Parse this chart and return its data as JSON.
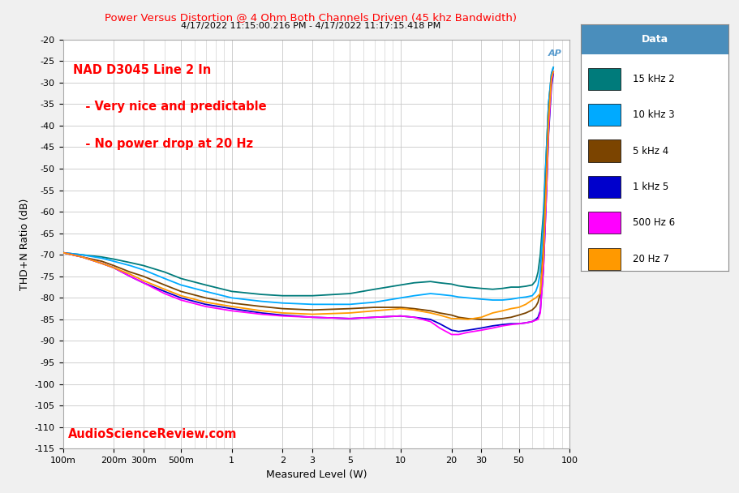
{
  "title_main": "Power Versus Distortion @ 4 Ohm Both Channels Driven (45 khz Bandwidth)",
  "title_sub": "4/17/2022 11:15:00.216 PM - 4/17/2022 11:17:15.418 PM",
  "xlabel": "Measured Level (W)",
  "ylabel": "THD+N Ratio (dB)",
  "annotation_line1": "NAD D3045 Line 2 In",
  "annotation_line2": "   - Very nice and predictable",
  "annotation_line3": "   - No power drop at 20 Hz",
  "watermark": "AudioScienceReview.com",
  "ap_logo": "AP",
  "legend_title": "Data",
  "legend_entries": [
    "15 kHz 2",
    "10 kHz 3",
    "5 kHz 4",
    "1 kHz 5",
    "500 Hz 6",
    "20 Hz 7"
  ],
  "line_colors": [
    "#007B7B",
    "#00AAFF",
    "#7B4400",
    "#0000CC",
    "#FF00FF",
    "#FF9900"
  ],
  "bg_color": "#F0F0F0",
  "plot_bg_color": "#FFFFFF",
  "grid_color": "#C8C8C8",
  "title_color": "#FF0000",
  "annotation_color": "#FF0000",
  "watermark_color": "#FF0000",
  "legend_header_bg": "#4A8EBC",
  "legend_header_fg": "#FFFFFF",
  "xlim_log": [
    0.1,
    100
  ],
  "ylim": [
    -115,
    -20
  ],
  "yticks": [
    -20,
    -25,
    -30,
    -35,
    -40,
    -45,
    -50,
    -55,
    -60,
    -65,
    -70,
    -75,
    -80,
    -85,
    -90,
    -95,
    -100,
    -105,
    -110,
    -115
  ],
  "xtick_labels": [
    "100m",
    "200m",
    "300m",
    "500m",
    "1",
    "2",
    "3",
    "5",
    "10",
    "20",
    "30",
    "50",
    "100"
  ],
  "xtick_values": [
    0.1,
    0.2,
    0.3,
    0.5,
    1.0,
    2.0,
    3.0,
    5.0,
    10.0,
    20.0,
    30.0,
    50.0,
    100.0
  ],
  "series": {
    "15kHz": {
      "x": [
        0.1,
        0.13,
        0.17,
        0.2,
        0.25,
        0.3,
        0.4,
        0.5,
        0.7,
        1.0,
        1.5,
        2.0,
        3.0,
        5.0,
        7.0,
        10.0,
        12.0,
        15.0,
        17.0,
        20.0,
        22.0,
        25.0,
        30.0,
        35.0,
        40.0,
        45.0,
        50.0,
        55.0,
        60.0,
        63.0,
        65.0,
        67.0,
        70.0,
        73.0,
        75.0,
        78.0,
        80.0
      ],
      "y": [
        -69.5,
        -70.0,
        -70.5,
        -71.0,
        -71.8,
        -72.5,
        -74.0,
        -75.5,
        -77.0,
        -78.5,
        -79.2,
        -79.5,
        -79.5,
        -79.0,
        -78.0,
        -77.0,
        -76.5,
        -76.2,
        -76.5,
        -76.8,
        -77.2,
        -77.5,
        -77.8,
        -78.0,
        -77.8,
        -77.5,
        -77.5,
        -77.3,
        -77.0,
        -76.0,
        -74.0,
        -70.0,
        -60.0,
        -45.0,
        -35.0,
        -28.0,
        -26.5
      ]
    },
    "10kHz": {
      "x": [
        0.1,
        0.13,
        0.17,
        0.2,
        0.25,
        0.3,
        0.4,
        0.5,
        0.7,
        1.0,
        1.5,
        2.0,
        3.0,
        5.0,
        7.0,
        10.0,
        12.0,
        15.0,
        17.0,
        20.0,
        22.0,
        25.0,
        30.0,
        35.0,
        40.0,
        45.0,
        50.0,
        55.0,
        60.0,
        63.0,
        65.0,
        67.0,
        70.0,
        73.0,
        75.0,
        78.0,
        80.0
      ],
      "y": [
        -69.5,
        -70.0,
        -70.8,
        -71.5,
        -72.5,
        -73.5,
        -75.5,
        -77.0,
        -78.5,
        -80.0,
        -80.8,
        -81.2,
        -81.5,
        -81.5,
        -81.0,
        -80.0,
        -79.5,
        -79.0,
        -79.2,
        -79.5,
        -79.8,
        -80.0,
        -80.3,
        -80.5,
        -80.5,
        -80.3,
        -80.0,
        -79.8,
        -79.5,
        -78.5,
        -77.0,
        -74.0,
        -62.0,
        -45.0,
        -35.0,
        -28.0,
        -26.5
      ]
    },
    "5kHz": {
      "x": [
        0.1,
        0.13,
        0.17,
        0.2,
        0.25,
        0.3,
        0.4,
        0.5,
        0.7,
        1.0,
        1.5,
        2.0,
        3.0,
        5.0,
        7.0,
        10.0,
        12.0,
        15.0,
        17.0,
        20.0,
        22.0,
        25.0,
        30.0,
        35.0,
        40.0,
        45.0,
        50.0,
        55.0,
        60.0,
        63.0,
        65.0,
        67.0,
        70.0,
        73.0,
        75.0,
        78.0,
        80.0
      ],
      "y": [
        -69.5,
        -70.5,
        -71.5,
        -72.5,
        -74.0,
        -75.0,
        -77.0,
        -78.5,
        -80.0,
        -81.2,
        -82.0,
        -82.5,
        -82.8,
        -82.5,
        -82.2,
        -82.2,
        -82.5,
        -83.0,
        -83.5,
        -84.0,
        -84.5,
        -84.8,
        -85.0,
        -85.0,
        -84.8,
        -84.5,
        -84.0,
        -83.5,
        -82.8,
        -82.0,
        -81.0,
        -79.0,
        -68.0,
        -50.0,
        -38.0,
        -29.0,
        -27.5
      ]
    },
    "1kHz": {
      "x": [
        0.1,
        0.13,
        0.17,
        0.2,
        0.25,
        0.3,
        0.4,
        0.5,
        0.7,
        1.0,
        1.5,
        2.0,
        3.0,
        5.0,
        7.0,
        10.0,
        12.0,
        15.0,
        17.0,
        20.0,
        22.0,
        25.0,
        30.0,
        35.0,
        40.0,
        45.0,
        50.0,
        55.0,
        60.0,
        63.0,
        65.0,
        67.0,
        70.0,
        73.0,
        75.0,
        78.0,
        80.0
      ],
      "y": [
        -69.5,
        -70.5,
        -72.0,
        -73.0,
        -75.0,
        -76.5,
        -78.5,
        -80.0,
        -81.5,
        -82.5,
        -83.5,
        -84.0,
        -84.5,
        -84.8,
        -84.5,
        -84.2,
        -84.5,
        -85.0,
        -86.0,
        -87.5,
        -87.8,
        -87.5,
        -87.0,
        -86.5,
        -86.2,
        -86.0,
        -86.0,
        -85.8,
        -85.5,
        -85.0,
        -84.5,
        -83.0,
        -73.0,
        -55.0,
        -42.0,
        -31.0,
        -28.0
      ]
    },
    "500Hz": {
      "x": [
        0.1,
        0.13,
        0.17,
        0.2,
        0.25,
        0.3,
        0.4,
        0.5,
        0.7,
        1.0,
        1.5,
        2.0,
        3.0,
        5.0,
        7.0,
        10.0,
        12.0,
        15.0,
        17.0,
        20.0,
        22.0,
        25.0,
        30.0,
        35.0,
        40.0,
        45.0,
        50.0,
        55.0,
        60.0,
        63.0,
        65.0,
        67.0,
        70.0,
        73.0,
        75.0,
        78.0,
        80.0
      ],
      "y": [
        -69.5,
        -70.5,
        -72.0,
        -73.0,
        -75.0,
        -76.5,
        -79.0,
        -80.5,
        -82.0,
        -83.0,
        -83.8,
        -84.2,
        -84.5,
        -84.8,
        -84.5,
        -84.2,
        -84.5,
        -85.5,
        -87.0,
        -88.5,
        -88.5,
        -88.0,
        -87.5,
        -87.0,
        -86.5,
        -86.2,
        -86.0,
        -85.8,
        -85.5,
        -85.2,
        -85.0,
        -83.5,
        -73.0,
        -55.0,
        -41.0,
        -30.0,
        -27.5
      ]
    },
    "20Hz": {
      "x": [
        0.1,
        0.13,
        0.17,
        0.2,
        0.25,
        0.3,
        0.4,
        0.5,
        0.7,
        1.0,
        1.5,
        2.0,
        3.0,
        5.0,
        7.0,
        10.0,
        12.0,
        15.0,
        17.0,
        20.0,
        22.0,
        25.0,
        30.0,
        35.0,
        40.0,
        45.0,
        50.0,
        55.0,
        60.0,
        63.0,
        65.0,
        67.0,
        70.0,
        73.0,
        75.0,
        78.0,
        80.0
      ],
      "y": [
        -69.5,
        -70.5,
        -72.0,
        -73.0,
        -74.5,
        -76.0,
        -78.0,
        -79.5,
        -81.0,
        -82.0,
        -83.0,
        -83.5,
        -83.8,
        -83.5,
        -83.0,
        -82.5,
        -82.8,
        -83.5,
        -84.0,
        -84.8,
        -84.8,
        -85.0,
        -84.5,
        -83.5,
        -83.0,
        -82.5,
        -82.2,
        -81.5,
        -80.5,
        -80.0,
        -79.5,
        -79.0,
        -70.0,
        -52.0,
        -39.0,
        -29.0,
        -27.5
      ]
    }
  }
}
